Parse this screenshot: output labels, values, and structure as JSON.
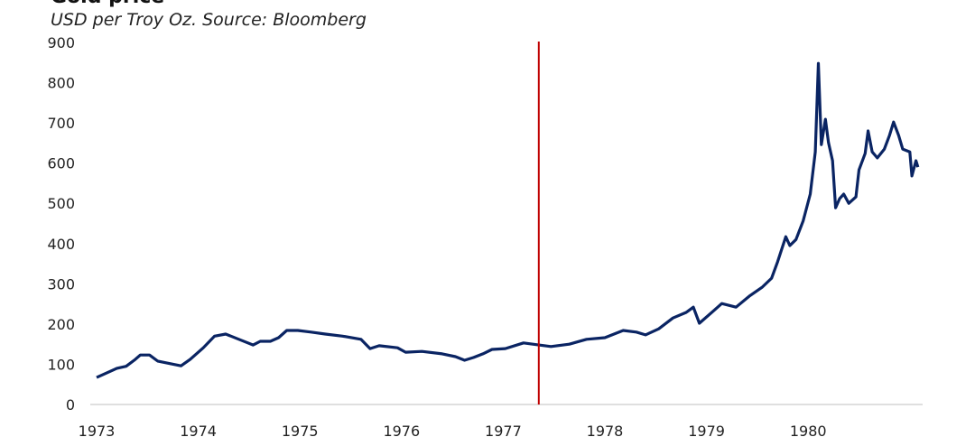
{
  "chart_data": {
    "type": "line",
    "title": "Gold price",
    "subtitle": "USD per Troy Oz. Source: Bloomberg",
    "xlabel": "",
    "ylabel": "USD per Troy Oz.",
    "ylim": [
      0,
      900
    ],
    "xlim": [
      1973,
      1980.95
    ],
    "yticks": [
      "0",
      "100",
      "200",
      "300",
      "400",
      "500",
      "600",
      "700",
      "800",
      "900"
    ],
    "xticks": [
      "1973",
      "1974",
      "1975",
      "1976",
      "1977",
      "1978",
      "1979",
      "1980"
    ],
    "grid": false,
    "legend": "none",
    "vline": {
      "x": 1977.35,
      "color": "#c00000"
    },
    "series": [
      {
        "name": "Gold price",
        "color": "#0a2463",
        "points": [
          [
            1973.0,
            67
          ],
          [
            1973.2,
            90
          ],
          [
            1973.29,
            95
          ],
          [
            1973.38,
            112
          ],
          [
            1973.43,
            123
          ],
          [
            1973.52,
            123
          ],
          [
            1973.6,
            108
          ],
          [
            1973.83,
            96
          ],
          [
            1973.92,
            112
          ],
          [
            1974.05,
            141
          ],
          [
            1974.16,
            170
          ],
          [
            1974.27,
            175
          ],
          [
            1974.4,
            162
          ],
          [
            1974.54,
            148
          ],
          [
            1974.61,
            157
          ],
          [
            1974.71,
            157
          ],
          [
            1974.79,
            166
          ],
          [
            1974.87,
            184
          ],
          [
            1974.98,
            184
          ],
          [
            1975.11,
            180
          ],
          [
            1975.25,
            175
          ],
          [
            1975.42,
            170
          ],
          [
            1975.6,
            162
          ],
          [
            1975.69,
            139
          ],
          [
            1975.78,
            146
          ],
          [
            1975.96,
            141
          ],
          [
            1976.04,
            130
          ],
          [
            1976.2,
            132
          ],
          [
            1976.4,
            126
          ],
          [
            1976.53,
            119
          ],
          [
            1976.62,
            110
          ],
          [
            1976.71,
            117
          ],
          [
            1976.8,
            126
          ],
          [
            1976.89,
            137
          ],
          [
            1977.02,
            139
          ],
          [
            1977.2,
            153
          ],
          [
            1977.35,
            148
          ],
          [
            1977.47,
            144
          ],
          [
            1977.65,
            150
          ],
          [
            1977.82,
            162
          ],
          [
            1978.0,
            166
          ],
          [
            1978.18,
            184
          ],
          [
            1978.31,
            180
          ],
          [
            1978.4,
            173
          ],
          [
            1978.53,
            188
          ],
          [
            1978.67,
            215
          ],
          [
            1978.8,
            229
          ],
          [
            1978.87,
            242
          ],
          [
            1978.93,
            202
          ],
          [
            1979.07,
            233
          ],
          [
            1979.15,
            251
          ],
          [
            1979.29,
            242
          ],
          [
            1979.42,
            269
          ],
          [
            1979.55,
            292
          ],
          [
            1979.64,
            314
          ],
          [
            1979.7,
            355
          ],
          [
            1979.78,
            417
          ],
          [
            1979.82,
            395
          ],
          [
            1979.88,
            410
          ],
          [
            1979.95,
            456
          ],
          [
            1980.02,
            523
          ],
          [
            1980.07,
            628
          ],
          [
            1980.1,
            848
          ],
          [
            1980.13,
            646
          ],
          [
            1980.17,
            709
          ],
          [
            1980.2,
            651
          ],
          [
            1980.24,
            606
          ],
          [
            1980.27,
            489
          ],
          [
            1980.31,
            512
          ],
          [
            1980.35,
            523
          ],
          [
            1980.4,
            500
          ],
          [
            1980.47,
            516
          ],
          [
            1980.5,
            583
          ],
          [
            1980.56,
            624
          ],
          [
            1980.59,
            680
          ],
          [
            1980.63,
            628
          ],
          [
            1980.68,
            613
          ],
          [
            1980.75,
            635
          ],
          [
            1980.8,
            669
          ],
          [
            1980.84,
            702
          ],
          [
            1980.89,
            669
          ],
          [
            1980.93,
            635
          ],
          [
            1981.0,
            628
          ],
          [
            1981.02,
            568
          ],
          [
            1981.06,
            606
          ],
          [
            1981.08,
            590
          ]
        ]
      }
    ]
  }
}
